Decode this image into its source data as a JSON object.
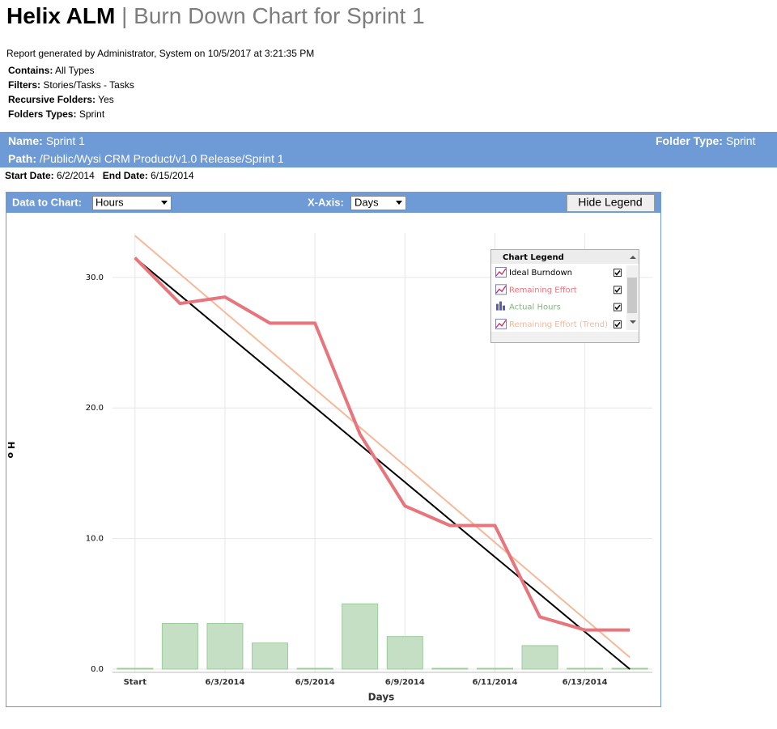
{
  "header": {
    "title": "Helix ALM",
    "separator": "|",
    "subtitle": "Burn Down Chart for Sprint 1"
  },
  "report": {
    "generated": "Report generated by Administrator, System on 10/5/2017 at 3:21:35 PM",
    "filters": [
      {
        "label": "Contains:",
        "value": "All Types"
      },
      {
        "label": "Filters:",
        "value": "Stories/Tasks - Tasks"
      },
      {
        "label": "Recursive Folders:",
        "value": "Yes"
      },
      {
        "label": "Folders Types:",
        "value": "Sprint"
      }
    ]
  },
  "folder": {
    "name_label": "Name:",
    "name": "Sprint 1",
    "type_label": "Folder Type:",
    "type": "Sprint",
    "path_label": "Path:",
    "path": "/Public/Wysi CRM Product/v1.0 Release/Sprint 1",
    "start_label": "Start Date:",
    "start": "6/2/2014",
    "end_label": "End Date:",
    "end": "6/15/2014"
  },
  "toolbar": {
    "data_label": "Data to Chart:",
    "data_value": "Hours",
    "xaxis_label": "X-Axis:",
    "xaxis_value": "Days",
    "button": "Hide Legend"
  },
  "chart_data": {
    "type": "combo",
    "y_label": "Ho",
    "x_label": "Days",
    "legend_title": "Chart Legend",
    "categories": [
      "Start",
      null,
      "6/3/2014",
      null,
      "6/5/2014",
      null,
      "6/9/2014",
      null,
      "6/11/2014",
      null,
      "6/13/2014",
      null
    ],
    "ylim": [
      0,
      33.4
    ],
    "yticks": [
      {
        "value": 0,
        "label": "0.0"
      },
      {
        "value": 10,
        "label": "10.0"
      },
      {
        "value": 20,
        "label": "20.0"
      },
      {
        "value": 30,
        "label": "30.0"
      }
    ],
    "grid": true,
    "series": [
      {
        "name": "Ideal Burndown",
        "type": "line",
        "color": "#000000",
        "values": [
          31.5,
          28.64,
          25.77,
          22.91,
          20.05,
          17.18,
          14.32,
          11.45,
          8.59,
          5.73,
          2.86,
          0
        ]
      },
      {
        "name": "Remaining Effort",
        "type": "line",
        "color": "#e8747c",
        "values": [
          31.5,
          28,
          28.5,
          26.5,
          26.5,
          18,
          12.5,
          11,
          11,
          4,
          3,
          3
        ]
      },
      {
        "name": "Actual Hours",
        "type": "bar",
        "color": "#c5dfc5",
        "values": [
          0,
          3.5,
          3.5,
          2,
          0,
          5,
          2.5,
          0,
          0,
          1.8,
          0,
          0
        ]
      },
      {
        "name": "Remaining Effort (Trend)",
        "type": "line",
        "color": "#f7b899",
        "values": [
          33.2,
          30.26,
          27.33,
          24.39,
          21.45,
          18.52,
          15.58,
          12.65,
          9.71,
          6.78,
          3.84,
          0.9
        ]
      }
    ]
  }
}
